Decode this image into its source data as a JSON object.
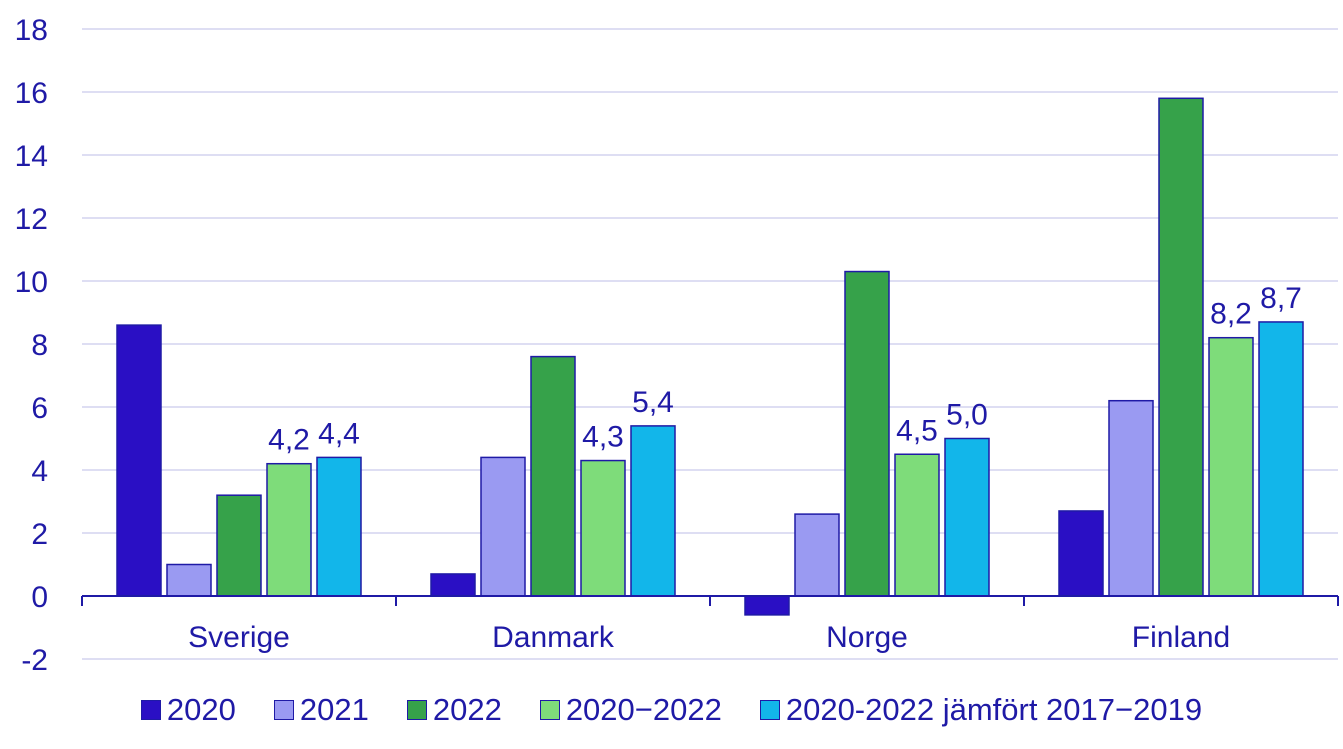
{
  "chart_data": {
    "type": "bar",
    "title": "",
    "xlabel": "",
    "ylabel": "",
    "ylim": [
      -2,
      18
    ],
    "yticks": [
      18,
      16,
      14,
      12,
      10,
      8,
      6,
      4,
      2,
      0,
      -2
    ],
    "grid": "horizontal",
    "legend_position": "bottom",
    "categories": [
      "Sverige",
      "Danmark",
      "Norge",
      "Finland"
    ],
    "series": [
      {
        "name": "2020",
        "color": "#2a0fc4",
        "values": [
          8.6,
          0.7,
          -0.6,
          2.7
        ],
        "labels": [
          "",
          "",
          "",
          ""
        ]
      },
      {
        "name": "2021",
        "color": "#9a9af2",
        "values": [
          1.0,
          4.4,
          2.6,
          6.2
        ],
        "labels": [
          "",
          "",
          "",
          ""
        ]
      },
      {
        "name": "2022",
        "color": "#36a24a",
        "values": [
          3.2,
          7.6,
          10.3,
          15.8
        ],
        "labels": [
          "",
          "",
          "",
          ""
        ]
      },
      {
        "name": "2020−2022",
        "color": "#7edc7a",
        "values": [
          4.2,
          4.3,
          4.5,
          8.2
        ],
        "labels": [
          "4,2",
          "4,3",
          "4,5",
          "8,2"
        ]
      },
      {
        "name": "2020-2022 jämfört 2017−2019",
        "color": "#12b6ea",
        "values": [
          4.4,
          5.4,
          5.0,
          8.7
        ],
        "labels": [
          "4,4",
          "5,4",
          "5,0",
          "8,7"
        ]
      }
    ],
    "colors": {
      "text": "#1f1aa6",
      "grid": "#d3d3ef",
      "axis": "#1f1aa6",
      "bar_border": "#1f1aa6"
    }
  }
}
